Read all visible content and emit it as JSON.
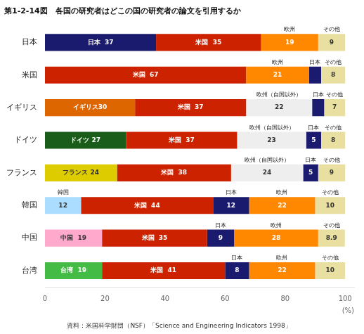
{
  "chart_data": {
    "type": "bar",
    "orientation": "horizontal",
    "stacked": true,
    "data_labels": true,
    "grid": false,
    "title": "第1-2-14図　各国の研究者はどこの国の研究者の論文を引用するか",
    "caption": "資料：米国科学財団（NSF）「Science and Engineering Indicators 1998」",
    "xlabel": "(%)",
    "xlim": [
      0,
      103
    ],
    "xticks": [
      0,
      20,
      40,
      60,
      80,
      100
    ],
    "categories": [
      "日本",
      "米国",
      "イギリス",
      "ドイツ",
      "フランス",
      "韓国",
      "中国",
      "台湾"
    ],
    "series": [
      {
        "values": [
          37,
          67,
          30,
          27,
          24,
          12,
          19,
          19
        ],
        "colors": [
          "#1a1a6e",
          "#cc2200",
          "#dd6600",
          "#1a5c1a",
          "#ddcc00",
          "#aaddff",
          "#ffaacc",
          "#44bb44"
        ],
        "value_labels": [
          "日本  37",
          "米国  67",
          "イギリス30",
          "ドイツ 27",
          "フランス 24",
          "12",
          "中国  19",
          "台湾  19"
        ],
        "label_colors": [
          "white",
          "white",
          "white",
          "white",
          "#333333",
          "#333333",
          "#333333",
          "white"
        ],
        "header_labels": [
          null,
          null,
          null,
          null,
          null,
          "韓国",
          null,
          null
        ]
      },
      {
        "values": [
          35,
          21,
          37,
          37,
          38,
          44,
          35,
          41
        ],
        "colors": [
          "#cc2200",
          "#ff8800",
          "#cc2200",
          "#cc2200",
          "#cc2200",
          "#cc2200",
          "#cc2200",
          "#cc2200"
        ],
        "value_labels": [
          "米国  35",
          "21",
          "米国  37",
          "米国  37",
          "米国  38",
          "米国  44",
          "米国  35",
          "米国  41"
        ],
        "label_colors": [
          "white",
          "white",
          "white",
          "white",
          "white",
          "white",
          "white",
          "white"
        ],
        "header_labels": [
          null,
          "欧州",
          null,
          null,
          null,
          null,
          null,
          null
        ]
      },
      {
        "values": [
          19,
          4,
          22,
          23,
          24,
          12,
          9,
          8
        ],
        "colors": [
          "#ff8800",
          "#1a1a6e",
          "#eeeeee",
          "#eeeeee",
          "#eeeeee",
          "#1a1a6e",
          "#1a1a6e",
          "#1a1a6e"
        ],
        "value_labels": [
          "19",
          null,
          "22",
          "23",
          "24",
          "12",
          "9",
          "8"
        ],
        "label_colors": [
          "white",
          null,
          "#333333",
          "#333333",
          "#333333",
          "white",
          "white",
          "white"
        ],
        "header_labels": [
          "欧州",
          "日本",
          "欧州（自国以外）",
          "欧州（自国以外）",
          "欧州（自国以外）",
          "日本",
          "日本",
          "日本"
        ]
      },
      {
        "values": [
          9,
          8,
          4,
          5,
          5,
          22,
          28,
          22
        ],
        "colors": [
          "#e8dfa0",
          "#e8dfa0",
          "#1a1a6e",
          "#1a1a6e",
          "#1a1a6e",
          "#ff8800",
          "#ff8800",
          "#ff8800"
        ],
        "value_labels": [
          "9",
          "8",
          null,
          "5",
          "5",
          "22",
          "28",
          "22"
        ],
        "label_colors": [
          "#333333",
          "#333333",
          null,
          "white",
          "white",
          "white",
          "white",
          "white"
        ],
        "header_labels": [
          "その他",
          "その他",
          "日本",
          "日本",
          "日本",
          "欧州",
          "欧州",
          "欧州"
        ]
      },
      {
        "values": [
          null,
          null,
          7,
          8,
          9,
          10,
          8.9,
          10
        ],
        "colors": [
          null,
          null,
          "#e8dfa0",
          "#e8dfa0",
          "#e8dfa0",
          "#e8dfa0",
          "#e8dfa0",
          "#e8dfa0"
        ],
        "value_labels": [
          null,
          null,
          "7",
          "8",
          "9",
          "10",
          "8.9",
          "10"
        ],
        "label_colors": [
          null,
          null,
          "#333333",
          "#333333",
          "#333333",
          "#333333",
          "#333333",
          "#333333"
        ],
        "header_labels": [
          null,
          null,
          "その他",
          "その他",
          "その他",
          "その他",
          "その他",
          "その他"
        ]
      }
    ]
  }
}
